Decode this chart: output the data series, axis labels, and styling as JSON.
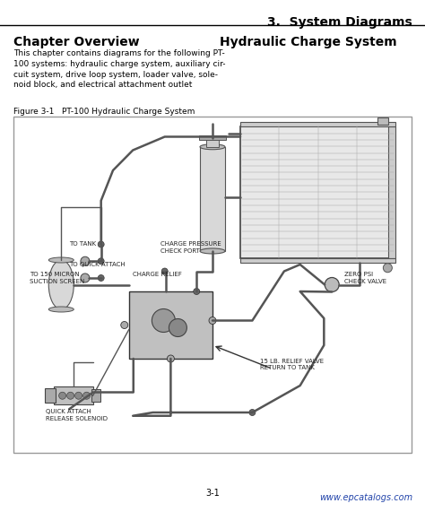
{
  "page_bg": "#ffffff",
  "header_title": "3.  System Diagrams",
  "left_heading": "Chapter Overview",
  "right_heading": "Hydraulic Charge System",
  "body_text": "This chapter contains diagrams for the following PT-\n100 systems: hydraulic charge system, auxiliary cir-\ncuit system, drive loop system, loader valve, sole-\nnoid block, and electrical attachment outlet",
  "figure_caption": "Figure 3-1   PT-100 Hydraulic Charge System",
  "page_number": "3-1",
  "website": "www.epcatalogs.com",
  "text_color": "#000000",
  "header_title_color": "#000000",
  "label_fontsize": 5.0,
  "heading_fontsize": 10,
  "body_fontsize": 6.5,
  "caption_fontsize": 6.5,
  "page_num_fontsize": 7,
  "website_fontsize": 7,
  "diagram_bg": "#ffffff",
  "diagram_border_color": "#999999"
}
